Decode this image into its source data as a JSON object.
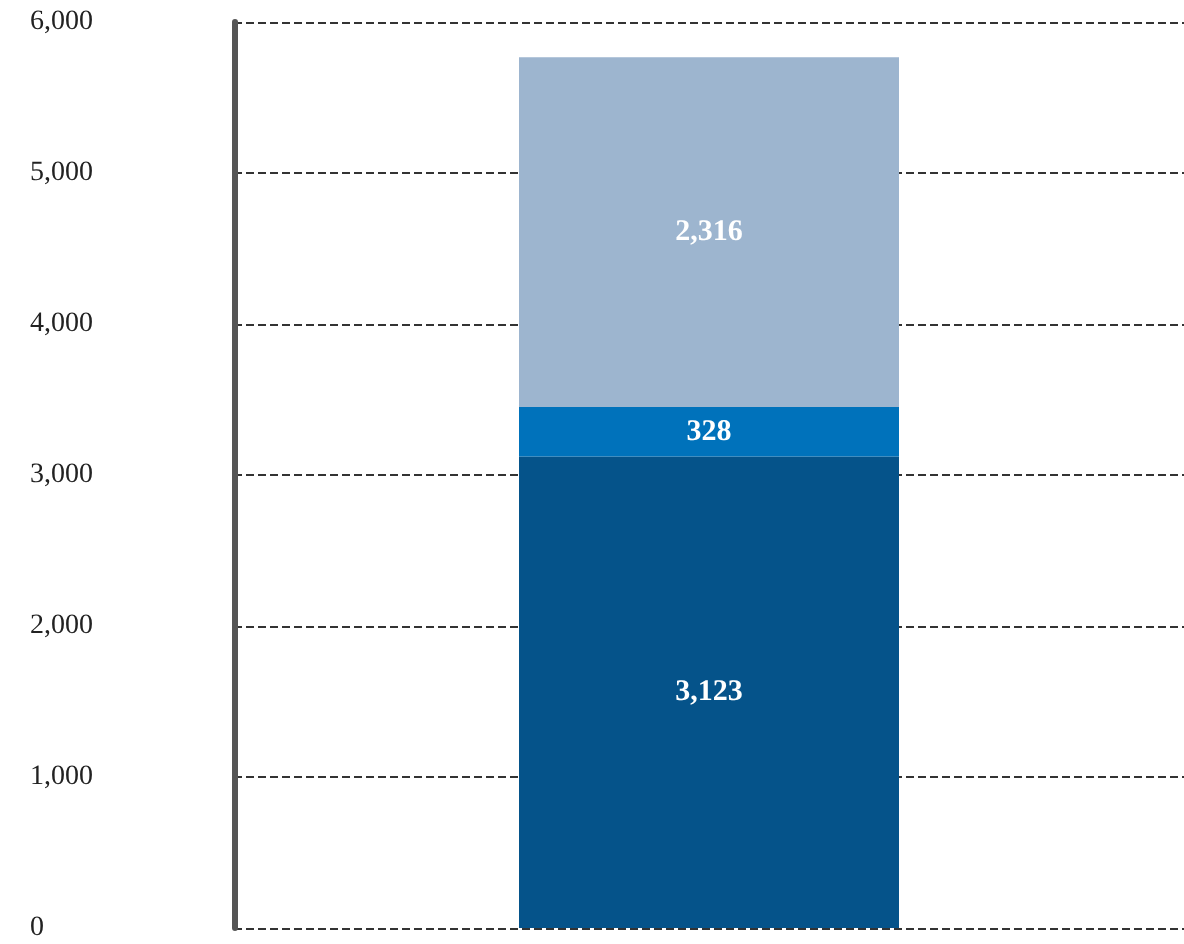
{
  "chart_data": {
    "type": "bar",
    "stacked": true,
    "categories": [
      null
    ],
    "series": [
      {
        "color": "#05538a",
        "values": [
          3123
        ],
        "value_labels": [
          "3,123"
        ]
      },
      {
        "color": "#0072bb",
        "values": [
          328
        ],
        "value_labels": [
          "328"
        ]
      },
      {
        "color": "#9db5cf",
        "values": [
          2316
        ],
        "value_labels": [
          "2,316"
        ]
      }
    ],
    "ylim": [
      0,
      6000
    ],
    "yticks": [
      0,
      {
        "value": 1000,
        "label": "1,000"
      },
      {
        "value": 2000,
        "label": "2,000"
      },
      {
        "value": 3000,
        "label": "3,000"
      },
      {
        "value": 4000,
        "label": "4,000"
      },
      {
        "value": 5000,
        "label": "5,000"
      },
      {
        "value": 6000,
        "label": "6,000"
      }
    ],
    "grid": "y"
  }
}
